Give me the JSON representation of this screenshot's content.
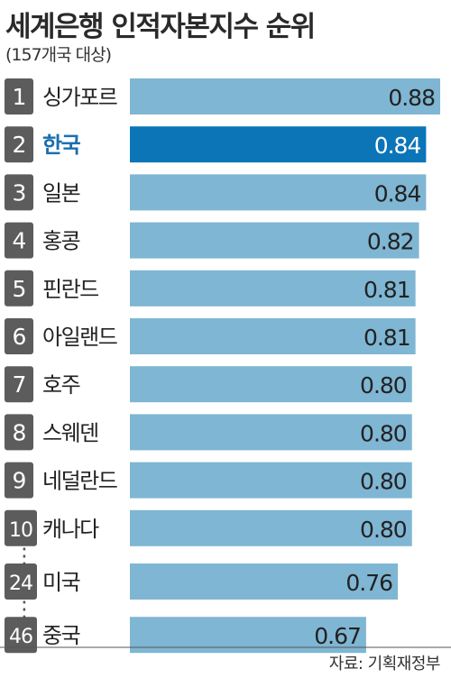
{
  "title": "세계은행 인적자본지수 순위",
  "subtitle": "(157개국 대상)",
  "source": "자료: 기획재정부",
  "colors": {
    "bar": "#7fb6d3",
    "highlight_bar": "#0b75b8",
    "highlight_text": "#1a6fae",
    "rank_badge": "#5c5c5c",
    "text": "#222222"
  },
  "chart_data": {
    "type": "bar",
    "orientation": "horizontal",
    "highlight": "한국",
    "xlim": [
      0,
      0.88
    ],
    "ranks": [
      "1",
      "2",
      "3",
      "4",
      "5",
      "6",
      "7",
      "8",
      "9",
      "10",
      "24",
      "46"
    ],
    "categories": [
      "싱가포르",
      "한국",
      "일본",
      "홍콩",
      "핀란드",
      "아일랜드",
      "호주",
      "스웨덴",
      "네덜란드",
      "캐나다",
      "미국",
      "중국"
    ],
    "values": [
      0.88,
      0.84,
      0.84,
      0.82,
      0.81,
      0.81,
      0.8,
      0.8,
      0.8,
      0.8,
      0.76,
      0.67
    ],
    "value_labels": [
      "0.88",
      "0.84",
      "0.84",
      "0.82",
      "0.81",
      "0.81",
      "0.80",
      "0.80",
      "0.80",
      "0.80",
      "0.76",
      "0.67"
    ],
    "gap_markers": [
      "⋮",
      "⋮"
    ]
  }
}
